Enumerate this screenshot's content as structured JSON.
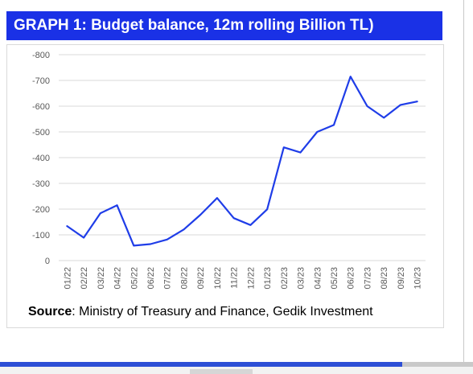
{
  "title": "GRAPH 1: Budget balance, 12m rolling Billion TL)",
  "source_label": "Source",
  "source_text": ": Ministry of Treasury and Finance, Gedik Investment",
  "chart_data": {
    "type": "line",
    "title": "GRAPH 1: Budget balance, 12m rolling Billion TL)",
    "xlabel": "",
    "ylabel": "",
    "categories": [
      "01/22",
      "02/22",
      "03/22",
      "04/22",
      "05/22",
      "06/22",
      "07/22",
      "08/22",
      "09/22",
      "10/22",
      "11/22",
      "12/22",
      "01/23",
      "02/23",
      "03/23",
      "04/23",
      "05/23",
      "06/23",
      "07/23",
      "08/23",
      "09/23",
      "10/23"
    ],
    "series": [
      {
        "color": "#1f3de8",
        "values": [
          -134,
          -89,
          -184,
          -215,
          -58,
          -64,
          -82,
          -121,
          -178,
          -243,
          -165,
          -138,
          -199,
          -440,
          -420,
          -500,
          -527,
          -715,
          -600,
          -555,
          -605,
          -618
        ]
      }
    ],
    "ylim": [
      0,
      -800
    ],
    "yticks": [
      0,
      -100,
      -200,
      -300,
      -400,
      -500,
      -600,
      -700,
      -800
    ],
    "ytick_labels": [
      "0",
      "-100",
      "-200",
      "-300",
      "-400",
      "-500",
      "-600",
      "-700",
      "-800"
    ],
    "y_axis": "reversed",
    "grid": "horizontal",
    "legend": "none"
  }
}
